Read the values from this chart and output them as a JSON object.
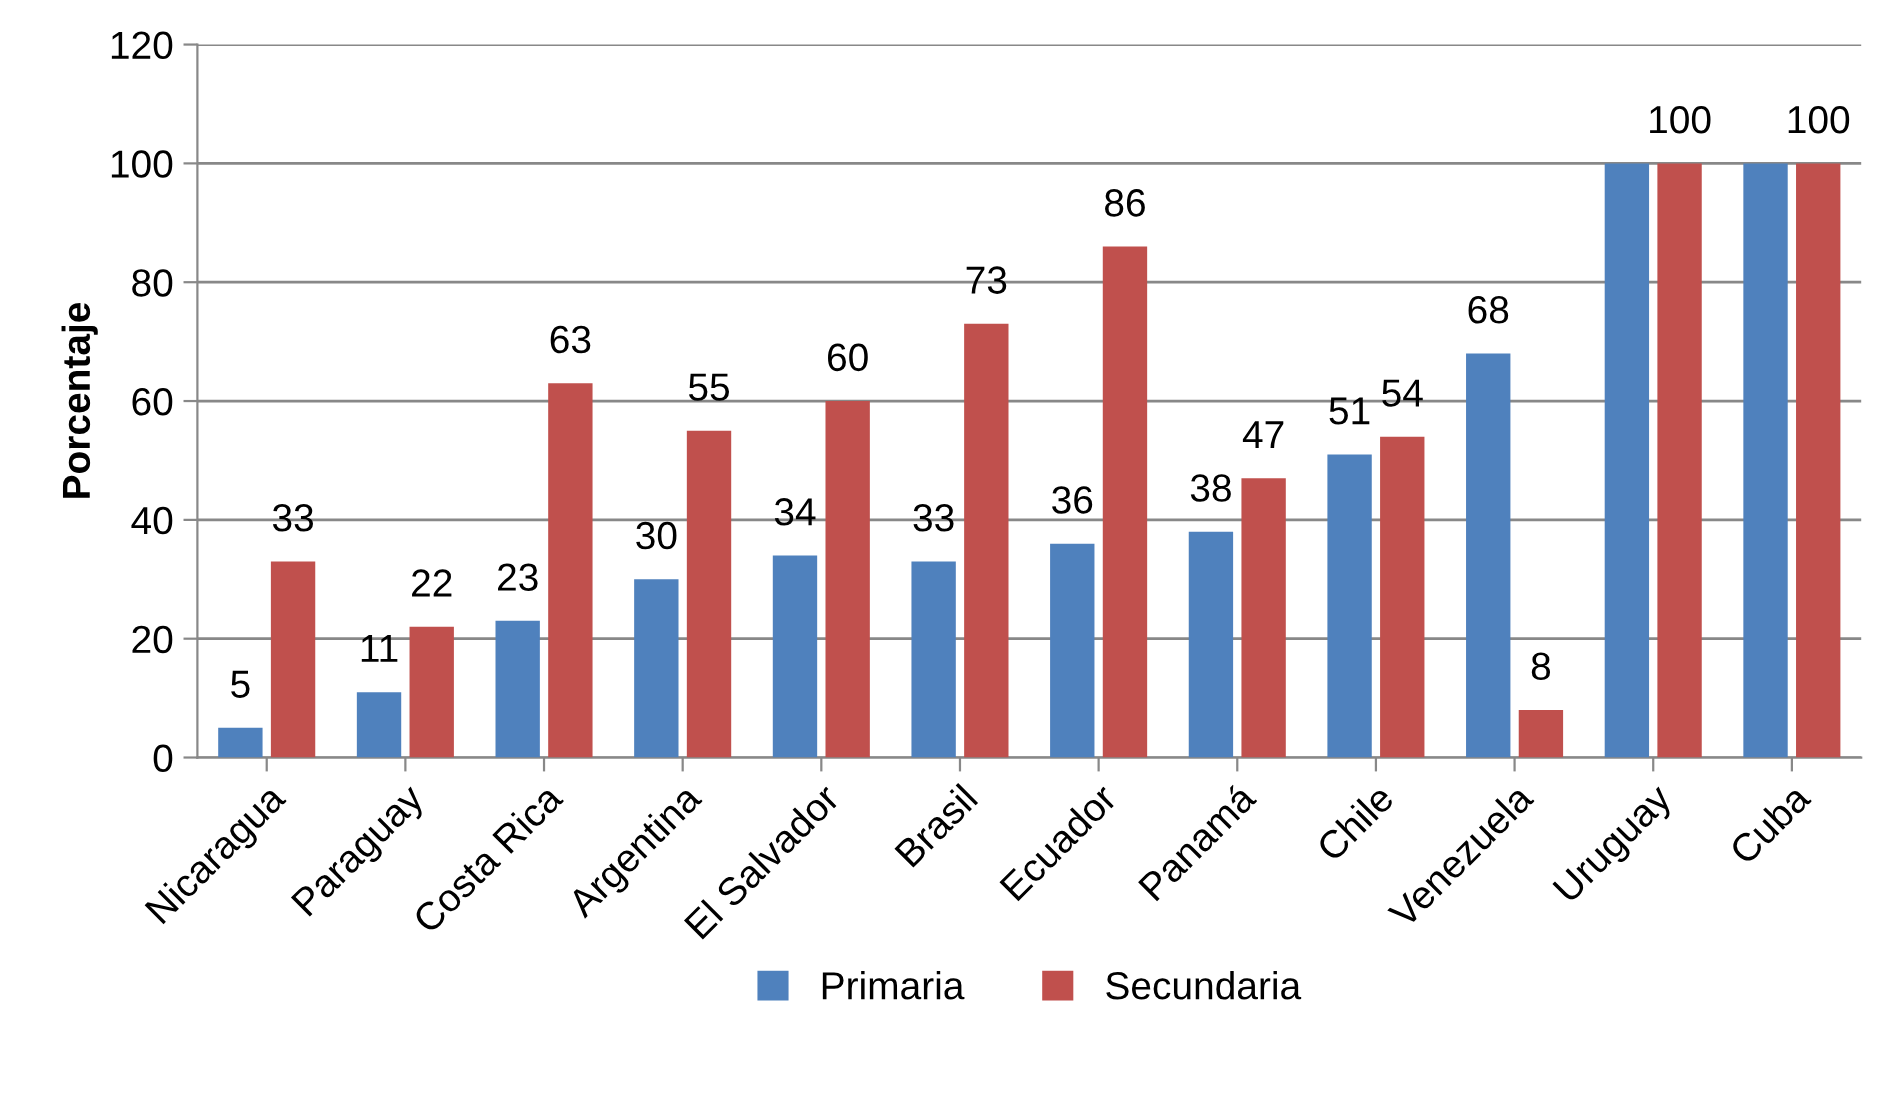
{
  "chart_data": {
    "type": "bar",
    "ylabel": "Porcentaje",
    "categories": [
      "Nicaragua",
      "Paraguay",
      "Costa Rica",
      "Argentina",
      "El Salvador",
      "Brasil",
      "Ecuador",
      "Panamá",
      "Chile",
      "Venezuela",
      "Uruguay",
      "Cuba"
    ],
    "series": [
      {
        "name": "Primaria",
        "color": "#4f81bd",
        "values": [
          5,
          11,
          23,
          30,
          34,
          33,
          36,
          38,
          51,
          68,
          100,
          100
        ],
        "value_labels": [
          "5",
          "11",
          "23",
          "30",
          "34",
          "33",
          "36",
          "38",
          "51",
          "68",
          null,
          null
        ]
      },
      {
        "name": "Secundaria",
        "color": "#c0504d",
        "values": [
          33,
          22,
          63,
          55,
          60,
          73,
          86,
          47,
          54,
          8,
          100,
          100
        ],
        "value_labels": [
          "33",
          "22",
          "63",
          "55",
          "60",
          "73",
          "86",
          "47",
          "54",
          "8",
          "100",
          "100"
        ]
      }
    ],
    "ylim": [
      0,
      120
    ],
    "yticks": [
      0,
      20,
      40,
      60,
      80,
      100,
      120
    ],
    "grid": "y",
    "legend": "bottom"
  }
}
